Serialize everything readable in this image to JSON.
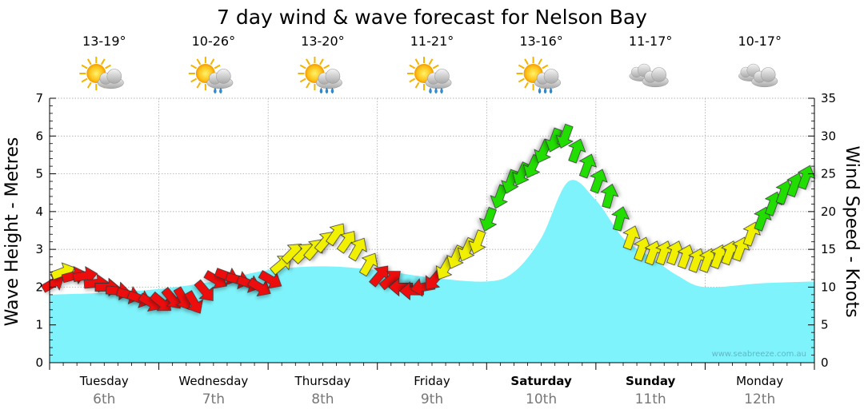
{
  "chart_data": {
    "type": "area",
    "title": "7 day wind & wave forecast for Nelson Bay",
    "ylabel_left": "Wave Height - Metres",
    "ylabel_right": "Wind Speed - Knots",
    "ylim_left": [
      0,
      7
    ],
    "ylim_right": [
      0,
      35
    ],
    "yticks_left": [
      "0",
      "1",
      "2",
      "3",
      "4",
      "5",
      "6",
      "7"
    ],
    "yticks_right": [
      "0",
      "5",
      "10",
      "15",
      "20",
      "25",
      "30",
      "35"
    ],
    "grid": true,
    "watermark": "www.seabreeze.com.au",
    "days": [
      {
        "name": "Tuesday",
        "date": "6th",
        "bold": false,
        "temp": "13-19°",
        "icon": "partly-cloudy-icon"
      },
      {
        "name": "Wednesday",
        "date": "7th",
        "bold": false,
        "temp": "10-26°",
        "icon": "sun-cloud-rain-icon"
      },
      {
        "name": "Thursday",
        "date": "8th",
        "bold": false,
        "temp": "13-20°",
        "icon": "sun-cloud-showers-icon"
      },
      {
        "name": "Friday",
        "date": "9th",
        "bold": false,
        "temp": "11-21°",
        "icon": "sun-cloud-showers-icon"
      },
      {
        "name": "Saturday",
        "date": "10th",
        "bold": true,
        "temp": "13-16°",
        "icon": "sun-cloud-showers-icon"
      },
      {
        "name": "Sunday",
        "date": "11th",
        "bold": true,
        "temp": "11-17°",
        "icon": "cloudy-icon"
      },
      {
        "name": "Monday",
        "date": "12th",
        "bold": false,
        "temp": "10-17°",
        "icon": "cloudy-icon"
      }
    ],
    "wave_series": {
      "name": "Wave Height",
      "color": "#7ff3fb",
      "x_days": [
        0,
        0.5,
        1,
        1.5,
        2,
        2.5,
        3,
        3.5,
        4,
        4.25,
        4.5,
        4.75,
        5,
        5.25,
        5.5,
        5.75,
        6,
        6.5,
        7
      ],
      "values": [
        1.8,
        1.85,
        1.95,
        2.15,
        2.45,
        2.55,
        2.45,
        2.25,
        2.15,
        2.4,
        3.3,
        4.8,
        4.3,
        3.3,
        2.8,
        2.3,
        2.0,
        2.1,
        2.15
      ]
    },
    "wind_series": {
      "name": "Wind Speed",
      "color_scale": {
        "low": "#ee1111",
        "mid": "#f0f000",
        "high": "#22dd00"
      },
      "points": [
        {
          "x": 0.03,
          "y": 10.5,
          "dir": 240
        },
        {
          "x": 0.12,
          "y": 12.0,
          "dir": 250
        },
        {
          "x": 0.22,
          "y": 11.5,
          "dir": 255
        },
        {
          "x": 0.32,
          "y": 11.5,
          "dir": 260
        },
        {
          "x": 0.42,
          "y": 10.5,
          "dir": 265
        },
        {
          "x": 0.52,
          "y": 10.0,
          "dir": 270
        },
        {
          "x": 0.62,
          "y": 9.5,
          "dir": 275
        },
        {
          "x": 0.72,
          "y": 9.0,
          "dir": 285
        },
        {
          "x": 0.82,
          "y": 8.5,
          "dir": 290
        },
        {
          "x": 0.92,
          "y": 8.0,
          "dir": 300
        },
        {
          "x": 1.02,
          "y": 8.0,
          "dir": 310
        },
        {
          "x": 1.12,
          "y": 8.5,
          "dir": 320
        },
        {
          "x": 1.22,
          "y": 8.5,
          "dir": 330
        },
        {
          "x": 1.32,
          "y": 8.0,
          "dir": 330
        },
        {
          "x": 1.42,
          "y": 9.5,
          "dir": 320
        },
        {
          "x": 1.52,
          "y": 11.0,
          "dir": 300
        },
        {
          "x": 1.62,
          "y": 11.5,
          "dir": 290
        },
        {
          "x": 1.72,
          "y": 11.0,
          "dir": 285
        },
        {
          "x": 1.82,
          "y": 10.5,
          "dir": 290
        },
        {
          "x": 1.92,
          "y": 10.0,
          "dir": 300
        },
        {
          "x": 2.02,
          "y": 11.0,
          "dir": 300
        },
        {
          "x": 2.12,
          "y": 13.0,
          "dir": 230
        },
        {
          "x": 2.22,
          "y": 14.5,
          "dir": 225
        },
        {
          "x": 2.32,
          "y": 14.5,
          "dir": 225
        },
        {
          "x": 2.42,
          "y": 15.0,
          "dir": 220
        },
        {
          "x": 2.52,
          "y": 16.0,
          "dir": 220
        },
        {
          "x": 2.62,
          "y": 17.0,
          "dir": 215
        },
        {
          "x": 2.72,
          "y": 16.0,
          "dir": 215
        },
        {
          "x": 2.82,
          "y": 15.0,
          "dir": 210
        },
        {
          "x": 2.92,
          "y": 13.0,
          "dir": 210
        },
        {
          "x": 3.02,
          "y": 11.5,
          "dir": 220
        },
        {
          "x": 3.12,
          "y": 11.0,
          "dir": 230
        },
        {
          "x": 3.22,
          "y": 10.0,
          "dir": 90
        },
        {
          "x": 3.32,
          "y": 9.5,
          "dir": 90
        },
        {
          "x": 3.42,
          "y": 10.0,
          "dir": 80
        },
        {
          "x": 3.52,
          "y": 11.0,
          "dir": 40
        },
        {
          "x": 3.62,
          "y": 12.5,
          "dir": 30
        },
        {
          "x": 3.72,
          "y": 14.0,
          "dir": 25
        },
        {
          "x": 3.82,
          "y": 15.0,
          "dir": 25
        },
        {
          "x": 3.92,
          "y": 16.0,
          "dir": 20
        },
        {
          "x": 4.02,
          "y": 19.0,
          "dir": 20
        },
        {
          "x": 4.12,
          "y": 22.0,
          "dir": 20
        },
        {
          "x": 4.22,
          "y": 24.0,
          "dir": 20
        },
        {
          "x": 4.32,
          "y": 25.0,
          "dir": 25
        },
        {
          "x": 4.42,
          "y": 26.0,
          "dir": 25
        },
        {
          "x": 4.52,
          "y": 28.0,
          "dir": 25
        },
        {
          "x": 4.62,
          "y": 29.5,
          "dir": 20
        },
        {
          "x": 4.72,
          "y": 30.0,
          "dir": 20
        },
        {
          "x": 4.82,
          "y": 28.0,
          "dir": 200
        },
        {
          "x": 4.92,
          "y": 26.0,
          "dir": 200
        },
        {
          "x": 5.02,
          "y": 24.0,
          "dir": 200
        },
        {
          "x": 5.12,
          "y": 22.0,
          "dir": 195
        },
        {
          "x": 5.22,
          "y": 19.0,
          "dir": 195
        },
        {
          "x": 5.32,
          "y": 16.5,
          "dir": 200
        },
        {
          "x": 5.42,
          "y": 15.0,
          "dir": 200
        },
        {
          "x": 5.52,
          "y": 14.5,
          "dir": 200
        },
        {
          "x": 5.62,
          "y": 14.5,
          "dir": 200
        },
        {
          "x": 5.72,
          "y": 14.5,
          "dir": 200
        },
        {
          "x": 5.82,
          "y": 14.0,
          "dir": 200
        },
        {
          "x": 5.92,
          "y": 13.5,
          "dir": 200
        },
        {
          "x": 6.02,
          "y": 13.5,
          "dir": 200
        },
        {
          "x": 6.12,
          "y": 14.0,
          "dir": 200
        },
        {
          "x": 6.22,
          "y": 14.5,
          "dir": 200
        },
        {
          "x": 6.32,
          "y": 15.0,
          "dir": 200
        },
        {
          "x": 6.42,
          "y": 17.0,
          "dir": 200
        },
        {
          "x": 6.52,
          "y": 19.0,
          "dir": 200
        },
        {
          "x": 6.62,
          "y": 21.0,
          "dir": 200
        },
        {
          "x": 6.72,
          "y": 22.5,
          "dir": 200
        },
        {
          "x": 6.82,
          "y": 23.5,
          "dir": 200
        },
        {
          "x": 6.92,
          "y": 24.5,
          "dir": 200
        }
      ]
    }
  }
}
